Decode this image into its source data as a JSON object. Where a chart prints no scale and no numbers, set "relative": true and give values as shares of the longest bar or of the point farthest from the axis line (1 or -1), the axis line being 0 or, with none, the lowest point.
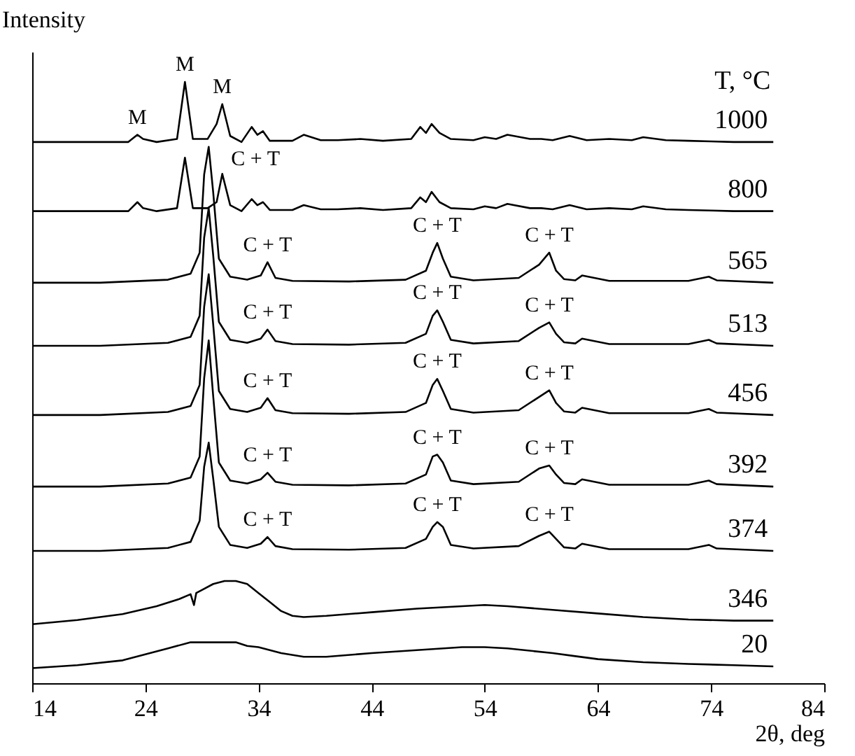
{
  "chart_data": {
    "type": "line",
    "relative": true,
    "xlabel": "2θ, deg",
    "ylabel": "Intensity",
    "legend_title": "T, °C",
    "xlim": [
      14,
      84
    ],
    "xticks": [
      14,
      24,
      34,
      44,
      54,
      64,
      74,
      84
    ],
    "grid": false,
    "marker": "none",
    "line_style": "solid",
    "series": [
      {
        "name": "1000",
        "color": "#000000",
        "x": [
          14,
          20,
          22.5,
          23.3,
          23.8,
          25,
          26.8,
          27.5,
          28.2,
          29.5,
          30.3,
          30.8,
          31.5,
          32.5,
          33.4,
          33.9,
          34.4,
          35,
          37,
          38,
          39.5,
          41,
          43,
          45,
          47.5,
          48.3,
          48.8,
          49.3,
          50,
          51,
          53,
          54,
          55,
          56,
          58,
          59,
          60,
          61.5,
          63,
          65,
          67,
          68,
          70,
          72,
          74,
          76,
          79.5
        ],
        "values": [
          0.9,
          0.9,
          0.9,
          0.912,
          0.905,
          0.9,
          0.905,
          1.0,
          0.905,
          0.905,
          0.93,
          0.963,
          0.91,
          0.9,
          0.925,
          0.912,
          0.918,
          0.902,
          0.902,
          0.912,
          0.903,
          0.903,
          0.905,
          0.902,
          0.905,
          0.925,
          0.915,
          0.93,
          0.915,
          0.905,
          0.903,
          0.908,
          0.905,
          0.912,
          0.905,
          0.905,
          0.903,
          0.91,
          0.903,
          0.905,
          0.903,
          0.908,
          0.903,
          0.902,
          0.901,
          0.9,
          0.9
        ]
      },
      {
        "name": "800",
        "color": "#000000",
        "x": [
          14,
          20,
          22.5,
          23.3,
          23.8,
          25,
          26.8,
          27.5,
          28.2,
          29.5,
          30.3,
          30.8,
          31.5,
          32.5,
          33.4,
          33.9,
          34.4,
          35,
          37,
          38,
          39.5,
          41,
          43,
          45,
          47.5,
          48.3,
          48.8,
          49.3,
          50,
          51,
          53,
          54,
          55,
          56,
          58,
          59,
          60,
          61.5,
          63,
          65,
          67,
          68,
          70,
          72,
          74,
          76,
          79.5
        ],
        "values": [
          0.785,
          0.785,
          0.785,
          0.8,
          0.79,
          0.785,
          0.79,
          0.874,
          0.79,
          0.79,
          0.8,
          0.847,
          0.795,
          0.785,
          0.805,
          0.795,
          0.8,
          0.787,
          0.787,
          0.795,
          0.788,
          0.788,
          0.79,
          0.787,
          0.79,
          0.808,
          0.8,
          0.817,
          0.8,
          0.79,
          0.788,
          0.793,
          0.79,
          0.797,
          0.79,
          0.79,
          0.788,
          0.795,
          0.788,
          0.79,
          0.788,
          0.793,
          0.788,
          0.787,
          0.786,
          0.785,
          0.785
        ]
      },
      {
        "name": "565",
        "color": "#000000",
        "x": [
          14,
          20,
          26,
          28,
          28.8,
          29.2,
          29.6,
          30,
          30.5,
          31.5,
          33,
          34.2,
          34.8,
          35.5,
          37,
          42,
          47,
          48.8,
          49.4,
          49.8,
          50.3,
          51,
          53,
          57,
          58.8,
          59.7,
          60.3,
          61,
          62,
          62.6,
          65,
          72,
          73.8,
          74.5,
          79.5
        ],
        "values": [
          0.666,
          0.666,
          0.671,
          0.681,
          0.716,
          0.846,
          0.892,
          0.816,
          0.706,
          0.676,
          0.671,
          0.678,
          0.7,
          0.674,
          0.669,
          0.668,
          0.671,
          0.686,
          0.716,
          0.732,
          0.706,
          0.676,
          0.67,
          0.674,
          0.696,
          0.716,
          0.686,
          0.672,
          0.67,
          0.678,
          0.669,
          0.669,
          0.676,
          0.67,
          0.666
        ]
      },
      {
        "name": "513",
        "color": "#000000",
        "x": [
          14,
          20,
          26,
          28,
          28.8,
          29.2,
          29.6,
          30,
          30.5,
          31.5,
          33,
          34.2,
          34.8,
          35.5,
          37,
          42,
          47,
          48.8,
          49.4,
          49.8,
          50.3,
          51,
          53,
          57,
          58.8,
          59.7,
          60.3,
          61,
          62,
          62.6,
          65,
          72,
          73.8,
          74.5,
          79.5
        ],
        "values": [
          0.561,
          0.561,
          0.566,
          0.576,
          0.611,
          0.741,
          0.79,
          0.711,
          0.601,
          0.571,
          0.566,
          0.573,
          0.588,
          0.569,
          0.564,
          0.563,
          0.566,
          0.581,
          0.611,
          0.62,
          0.601,
          0.571,
          0.565,
          0.569,
          0.591,
          0.6,
          0.581,
          0.567,
          0.565,
          0.573,
          0.564,
          0.564,
          0.571,
          0.565,
          0.561
        ]
      },
      {
        "name": "456",
        "color": "#000000",
        "x": [
          14,
          20,
          26,
          28,
          28.8,
          29.2,
          29.6,
          30,
          30.5,
          31.5,
          33,
          34.2,
          34.8,
          35.5,
          37,
          42,
          47,
          48.8,
          49.4,
          49.8,
          50.3,
          51,
          53,
          57,
          58.8,
          59.7,
          60.3,
          61,
          62,
          62.6,
          65,
          72,
          73.8,
          74.5,
          79.5
        ],
        "values": [
          0.446,
          0.446,
          0.451,
          0.461,
          0.496,
          0.626,
          0.68,
          0.596,
          0.486,
          0.456,
          0.451,
          0.458,
          0.474,
          0.454,
          0.449,
          0.448,
          0.451,
          0.466,
          0.496,
          0.506,
          0.486,
          0.456,
          0.45,
          0.454,
          0.476,
          0.487,
          0.466,
          0.452,
          0.45,
          0.458,
          0.449,
          0.449,
          0.456,
          0.45,
          0.446
        ]
      },
      {
        "name": "392",
        "color": "#000000",
        "x": [
          14,
          20,
          26,
          28,
          28.8,
          29.2,
          29.6,
          30,
          30.5,
          31.5,
          33,
          34.2,
          34.8,
          35.5,
          37,
          42,
          47,
          48.8,
          49.4,
          49.8,
          50.3,
          51,
          53,
          57,
          58.8,
          59.7,
          60.3,
          61,
          62,
          62.6,
          65,
          72,
          73.8,
          74.5,
          79.5
        ],
        "values": [
          0.327,
          0.327,
          0.332,
          0.342,
          0.377,
          0.507,
          0.57,
          0.477,
          0.367,
          0.337,
          0.332,
          0.339,
          0.35,
          0.335,
          0.33,
          0.329,
          0.332,
          0.347,
          0.377,
          0.38,
          0.367,
          0.337,
          0.331,
          0.335,
          0.357,
          0.362,
          0.347,
          0.333,
          0.331,
          0.339,
          0.33,
          0.33,
          0.337,
          0.331,
          0.327
        ]
      },
      {
        "name": "374",
        "color": "#000000",
        "x": [
          14,
          20,
          26,
          28,
          28.8,
          29.2,
          29.6,
          30,
          30.5,
          31.5,
          33,
          34.2,
          34.8,
          35.5,
          37,
          42,
          47,
          48.8,
          49.4,
          49.8,
          50.3,
          51,
          53,
          57,
          58.8,
          59.7,
          60.3,
          61,
          62,
          62.6,
          65,
          72,
          73.8,
          74.5,
          79.5
        ],
        "values": [
          0.22,
          0.22,
          0.225,
          0.235,
          0.27,
          0.36,
          0.4,
          0.34,
          0.26,
          0.23,
          0.225,
          0.232,
          0.243,
          0.228,
          0.223,
          0.222,
          0.225,
          0.24,
          0.26,
          0.268,
          0.26,
          0.23,
          0.224,
          0.228,
          0.245,
          0.252,
          0.24,
          0.226,
          0.224,
          0.232,
          0.223,
          0.223,
          0.23,
          0.224,
          0.22
        ]
      },
      {
        "name": "346",
        "color": "#000000",
        "x": [
          14,
          18,
          22,
          25,
          27,
          28,
          28.3,
          28.5,
          29,
          30,
          31,
          32,
          33,
          34,
          35,
          36,
          37,
          38,
          40,
          44,
          48,
          52,
          54,
          56,
          60,
          64,
          68,
          72,
          76,
          79.5
        ],
        "values": [
          0.098,
          0.105,
          0.115,
          0.128,
          0.14,
          0.148,
          0.13,
          0.15,
          0.155,
          0.165,
          0.17,
          0.17,
          0.165,
          0.15,
          0.135,
          0.12,
          0.112,
          0.11,
          0.112,
          0.118,
          0.124,
          0.128,
          0.13,
          0.128,
          0.122,
          0.116,
          0.11,
          0.106,
          0.104,
          0.104
        ]
      },
      {
        "name": "20",
        "color": "#000000",
        "x": [
          14,
          18,
          22,
          24,
          26,
          28,
          30,
          32,
          33,
          34,
          36,
          38,
          40,
          44,
          48,
          52,
          54,
          56,
          60,
          62,
          64,
          68,
          72,
          76,
          79.5
        ],
        "values": [
          0.025,
          0.03,
          0.038,
          0.048,
          0.058,
          0.068,
          0.068,
          0.068,
          0.062,
          0.06,
          0.05,
          0.044,
          0.044,
          0.05,
          0.055,
          0.06,
          0.06,
          0.058,
          0.05,
          0.045,
          0.04,
          0.035,
          0.032,
          0.03,
          0.028
        ]
      }
    ],
    "annotations": [
      {
        "text": "M",
        "x": 23.3,
        "y": 0.912
      },
      {
        "text": "M",
        "x": 27.5,
        "y": 1.0
      },
      {
        "text": "M",
        "x": 30.8,
        "y": 0.963
      },
      {
        "text": "C + T",
        "x": 29.6,
        "y": 0.892
      },
      {
        "text": "C + T",
        "x": 34.8,
        "y": 0.7
      },
      {
        "text": "C + T",
        "x": 49.8,
        "y": 0.732
      },
      {
        "text": "C + T",
        "x": 59.7,
        "y": 0.716
      },
      {
        "text": "C + T",
        "x": 34.8,
        "y": 0.588
      },
      {
        "text": "C + T",
        "x": 49.8,
        "y": 0.62
      },
      {
        "text": "C + T",
        "x": 59.7,
        "y": 0.6
      },
      {
        "text": "C + T",
        "x": 34.8,
        "y": 0.474
      },
      {
        "text": "C + T",
        "x": 49.8,
        "y": 0.506
      },
      {
        "text": "C + T",
        "x": 59.7,
        "y": 0.487
      },
      {
        "text": "C + T",
        "x": 34.8,
        "y": 0.35
      },
      {
        "text": "C + T",
        "x": 49.8,
        "y": 0.38
      },
      {
        "text": "C + T",
        "x": 59.7,
        "y": 0.362
      },
      {
        "text": "C + T",
        "x": 34.8,
        "y": 0.243
      },
      {
        "text": "C + T",
        "x": 49.8,
        "y": 0.268
      },
      {
        "text": "C + T",
        "x": 59.7,
        "y": 0.252
      }
    ]
  }
}
